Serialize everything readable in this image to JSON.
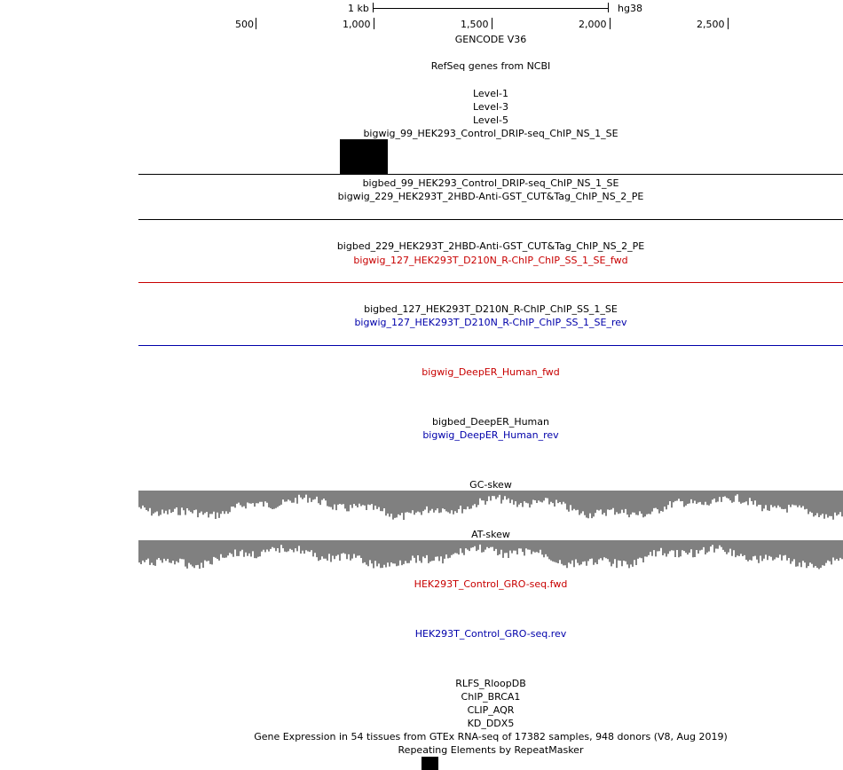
{
  "ruler": {
    "scale_label": "1 kb",
    "assembly": "hg38",
    "ticks": [
      "500",
      "1,000",
      "1,500",
      "2,000",
      "2,500"
    ]
  },
  "tracks": {
    "gencode": "GENCODE V36",
    "refseq": "RefSeq genes from NCBI",
    "level1": "Level-1",
    "level3": "Level-3",
    "level5": "Level-5",
    "bigwig_99": "bigwig_99_HEK293_Control_DRIP-seq_ChIP_NS_1_SE",
    "bigbed_99": "bigbed_99_HEK293_Control_DRIP-seq_ChIP_NS_1_SE",
    "bigwig_229": "bigwig_229_HEK293T_2HBD-Anti-GST_CUT&Tag_ChIP_NS_2_PE",
    "bigbed_229": "bigbed_229_HEK293T_2HBD-Anti-GST_CUT&Tag_ChIP_NS_2_PE",
    "bigwig_127_fwd": "bigwig_127_HEK293T_D210N_R-ChIP_ChIP_SS_1_SE_fwd",
    "bigbed_127": "bigbed_127_HEK293T_D210N_R-ChIP_ChIP_SS_1_SE",
    "bigwig_127_rev": "bigwig_127_HEK293T_D210N_R-ChIP_ChIP_SS_1_SE_rev",
    "deeper_fwd": "bigwig_DeepER_Human_fwd",
    "deeper_bed": "bigbed_DeepER_Human",
    "deeper_rev": "bigwig_DeepER_Human_rev",
    "gc_skew": "GC-skew",
    "at_skew": "AT-skew",
    "gro_fwd": "HEK293T_Control_GRO-seq.fwd",
    "gro_rev": "HEK293T_Control_GRO-seq.rev",
    "rlfs": "RLFS_RloopDB",
    "chip_brca1": "ChIP_BRCA1",
    "clip_aqr": "CLIP_AQR",
    "kd_ddx5": "KD_DDX5",
    "gtex": "Gene Expression in 54 tissues from GTEx RNA-seq of 17382 samples, 948 donors (V8, Aug 2019)",
    "repeatmasker": "Repeating Elements by RepeatMasker"
  },
  "colors": {
    "fwd": "#c80000",
    "rev": "#0000aa",
    "neutral": "#000000",
    "skew_fill": "#808080"
  }
}
